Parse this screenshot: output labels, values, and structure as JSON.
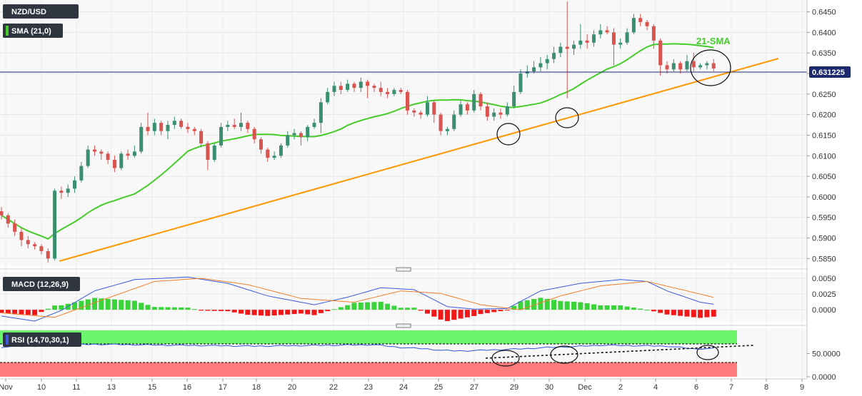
{
  "labels": {
    "symbol": "NZD/USD",
    "sma": "SMA (21,0)",
    "macd": "MACD (12,26,9)",
    "rsi": "RSI (14,70,30,1)",
    "annotation": "21-SMA",
    "last_price": "0.631225"
  },
  "colors": {
    "up": "#3a8f6e",
    "down": "#d9534f",
    "sma": "#45cc2a",
    "trend": "#ff9800",
    "macd_line": "#3b5bdb",
    "signal_line": "#f07f2a",
    "hist_pos": "#3ad43a",
    "hist_neg": "#f01818",
    "rsi_over": "#6cf56c",
    "rsi_under": "#ff7b7b",
    "label_bg": "#2f3640",
    "last_price_line": "#1e2a6e"
  },
  "chart_data": [
    {
      "type": "candlestick",
      "title": "NZD/USD",
      "x_ticks": [
        "Nov",
        "10",
        "11",
        "13",
        "15",
        "16",
        "17",
        "18",
        "20",
        "22",
        "23",
        "24",
        "25",
        "27",
        "29",
        "30",
        "Dec",
        "2",
        "4",
        "6",
        "7",
        "8",
        "9"
      ],
      "ylim": [
        0.5835,
        0.647
      ],
      "y_ticks": [
        "0.5850",
        "0.5900",
        "0.5950",
        "0.6000",
        "0.6050",
        "0.6100",
        "0.6150",
        "0.6200",
        "0.6250",
        "0.6300",
        "0.6350",
        "0.6400",
        "0.6450"
      ],
      "last_price": 0.631225,
      "sma_period": 21,
      "candles": [
        [
          0.5965,
          0.5955,
          0.5975,
          0.5945
        ],
        [
          0.5955,
          0.5935,
          0.596,
          0.5925
        ],
        [
          0.5935,
          0.5915,
          0.5945,
          0.5905
        ],
        [
          0.5915,
          0.5895,
          0.5925,
          0.588
        ],
        [
          0.5895,
          0.5885,
          0.5905,
          0.5875
        ],
        [
          0.5885,
          0.588,
          0.589,
          0.5872
        ],
        [
          0.588,
          0.5868,
          0.5885,
          0.586
        ],
        [
          0.5868,
          0.585,
          0.5875,
          0.584
        ],
        [
          0.585,
          0.6015,
          0.602,
          0.5845
        ],
        [
          0.6015,
          0.601,
          0.6025,
          0.5995
        ],
        [
          0.601,
          0.602,
          0.603,
          0.6
        ],
        [
          0.602,
          0.604,
          0.605,
          0.601
        ],
        [
          0.604,
          0.6075,
          0.6085,
          0.6035
        ],
        [
          0.6075,
          0.6115,
          0.6125,
          0.607
        ],
        [
          0.6115,
          0.611,
          0.6125,
          0.61
        ],
        [
          0.611,
          0.6105,
          0.6115,
          0.609
        ],
        [
          0.6105,
          0.609,
          0.611,
          0.608
        ],
        [
          0.609,
          0.607,
          0.61,
          0.606
        ],
        [
          0.607,
          0.6105,
          0.611,
          0.6065
        ],
        [
          0.6105,
          0.61,
          0.6115,
          0.609
        ],
        [
          0.61,
          0.611,
          0.6125,
          0.6095
        ],
        [
          0.611,
          0.617,
          0.618,
          0.6105
        ],
        [
          0.617,
          0.616,
          0.6205,
          0.615
        ],
        [
          0.616,
          0.618,
          0.619,
          0.615
        ],
        [
          0.618,
          0.616,
          0.6185,
          0.615
        ],
        [
          0.616,
          0.6175,
          0.6185,
          0.614
        ],
        [
          0.6175,
          0.6185,
          0.6195,
          0.6165
        ],
        [
          0.6185,
          0.617,
          0.619,
          0.6165
        ],
        [
          0.617,
          0.6165,
          0.618,
          0.6155
        ],
        [
          0.6165,
          0.616,
          0.617,
          0.615
        ],
        [
          0.616,
          0.613,
          0.6165,
          0.612
        ],
        [
          0.613,
          0.609,
          0.6135,
          0.6065
        ],
        [
          0.609,
          0.6125,
          0.613,
          0.6085
        ],
        [
          0.6125,
          0.617,
          0.618,
          0.612
        ],
        [
          0.617,
          0.6175,
          0.6185,
          0.616
        ],
        [
          0.6175,
          0.617,
          0.619,
          0.6165
        ],
        [
          0.617,
          0.618,
          0.6205,
          0.616
        ],
        [
          0.618,
          0.6165,
          0.6185,
          0.6155
        ],
        [
          0.6165,
          0.614,
          0.617,
          0.613
        ],
        [
          0.614,
          0.6115,
          0.6145,
          0.6105
        ],
        [
          0.6115,
          0.6095,
          0.612,
          0.6085
        ],
        [
          0.6095,
          0.61,
          0.611,
          0.609
        ],
        [
          0.61,
          0.6125,
          0.613,
          0.6095
        ],
        [
          0.6125,
          0.615,
          0.616,
          0.612
        ],
        [
          0.615,
          0.6155,
          0.6165,
          0.614
        ],
        [
          0.6155,
          0.6145,
          0.616,
          0.6125
        ],
        [
          0.6145,
          0.617,
          0.6175,
          0.6135
        ],
        [
          0.617,
          0.618,
          0.619,
          0.6165
        ],
        [
          0.618,
          0.623,
          0.624,
          0.6155
        ],
        [
          0.623,
          0.6255,
          0.6265,
          0.6225
        ],
        [
          0.6255,
          0.627,
          0.628,
          0.6245
        ],
        [
          0.627,
          0.626,
          0.628,
          0.625
        ],
        [
          0.626,
          0.6275,
          0.6285,
          0.6255
        ],
        [
          0.6275,
          0.6265,
          0.628,
          0.6255
        ],
        [
          0.6265,
          0.628,
          0.629,
          0.6255
        ],
        [
          0.628,
          0.627,
          0.6285,
          0.624
        ],
        [
          0.627,
          0.6265,
          0.6275,
          0.6255
        ],
        [
          0.6265,
          0.6255,
          0.628,
          0.6245
        ],
        [
          0.6255,
          0.625,
          0.6265,
          0.624
        ],
        [
          0.625,
          0.626,
          0.6265,
          0.6245
        ],
        [
          0.626,
          0.6255,
          0.6265,
          0.625
        ],
        [
          0.6255,
          0.621,
          0.626,
          0.62
        ],
        [
          0.621,
          0.6205,
          0.6215,
          0.6195
        ],
        [
          0.6205,
          0.62,
          0.621,
          0.619
        ],
        [
          0.62,
          0.623,
          0.6245,
          0.6195
        ],
        [
          0.623,
          0.62,
          0.6235,
          0.618
        ],
        [
          0.62,
          0.616,
          0.6205,
          0.615
        ],
        [
          0.616,
          0.6165,
          0.617,
          0.615
        ],
        [
          0.6165,
          0.62,
          0.621,
          0.616
        ],
        [
          0.62,
          0.6225,
          0.6235,
          0.6195
        ],
        [
          0.6225,
          0.621,
          0.623,
          0.62
        ],
        [
          0.621,
          0.625,
          0.626,
          0.6205
        ],
        [
          0.625,
          0.622,
          0.6255,
          0.621
        ],
        [
          0.622,
          0.6195,
          0.623,
          0.6185
        ],
        [
          0.6195,
          0.6205,
          0.6215,
          0.6185
        ],
        [
          0.6205,
          0.62,
          0.6215,
          0.619
        ],
        [
          0.62,
          0.622,
          0.623,
          0.6195
        ],
        [
          0.622,
          0.6255,
          0.627,
          0.6215
        ],
        [
          0.6255,
          0.63,
          0.631,
          0.625
        ],
        [
          0.63,
          0.6305,
          0.632,
          0.629
        ],
        [
          0.6305,
          0.6315,
          0.633,
          0.63
        ],
        [
          0.6315,
          0.6325,
          0.634,
          0.6305
        ],
        [
          0.6325,
          0.6335,
          0.6345,
          0.631
        ],
        [
          0.6335,
          0.635,
          0.6365,
          0.6325
        ],
        [
          0.635,
          0.6365,
          0.6375,
          0.634
        ],
        [
          0.6365,
          0.636,
          0.6475,
          0.624
        ],
        [
          0.636,
          0.637,
          0.638,
          0.6345
        ],
        [
          0.637,
          0.638,
          0.642,
          0.636
        ],
        [
          0.638,
          0.6375,
          0.6395,
          0.636
        ],
        [
          0.6375,
          0.6395,
          0.6405,
          0.6365
        ],
        [
          0.6395,
          0.6405,
          0.642,
          0.6385
        ],
        [
          0.6405,
          0.64,
          0.6415,
          0.6395
        ],
        [
          0.64,
          0.637,
          0.641,
          0.632
        ],
        [
          0.637,
          0.6375,
          0.6385,
          0.636
        ],
        [
          0.6375,
          0.64,
          0.641,
          0.637
        ],
        [
          0.64,
          0.6435,
          0.6445,
          0.6395
        ],
        [
          0.6435,
          0.6425,
          0.6445,
          0.6415
        ],
        [
          0.6425,
          0.6415,
          0.643,
          0.6405
        ],
        [
          0.6415,
          0.638,
          0.642,
          0.636
        ],
        [
          0.638,
          0.632,
          0.6385,
          0.6295
        ],
        [
          0.632,
          0.631,
          0.633,
          0.63
        ],
        [
          0.631,
          0.6325,
          0.6335,
          0.6305
        ],
        [
          0.6325,
          0.631,
          0.633,
          0.63
        ],
        [
          0.631,
          0.633,
          0.6345,
          0.6305
        ],
        [
          0.633,
          0.6315,
          0.635,
          0.6305
        ],
        [
          0.6315,
          0.632,
          0.6325,
          0.631
        ],
        [
          0.632,
          0.6325,
          0.633,
          0.631
        ],
        [
          0.6325,
          0.6312,
          0.6335,
          0.6305
        ]
      ]
    },
    {
      "type": "line",
      "title": "MACD (12,26,9)",
      "ylim": [
        -0.0018,
        0.0058
      ],
      "y_ticks": [
        "0.0050",
        "0.0025",
        "0.0000"
      ],
      "macd_keyframes": [
        [
          0,
          -0.001
        ],
        [
          5,
          -0.0018
        ],
        [
          9,
          -0.0001
        ],
        [
          14,
          0.003
        ],
        [
          20,
          0.0048
        ],
        [
          28,
          0.0052
        ],
        [
          34,
          0.0042
        ],
        [
          40,
          0.0022
        ],
        [
          47,
          0.0008
        ],
        [
          52,
          0.002
        ],
        [
          57,
          0.0035
        ],
        [
          62,
          0.0032
        ],
        [
          67,
          0.0005
        ],
        [
          71,
          0.0001
        ],
        [
          76,
          0.0002
        ],
        [
          81,
          0.003
        ],
        [
          87,
          0.0042
        ],
        [
          93,
          0.0048
        ],
        [
          97,
          0.0045
        ],
        [
          100,
          0.003
        ],
        [
          105,
          0.0012
        ],
        [
          110,
          0.0004
        ]
      ],
      "signal_keyframes": [
        [
          0,
          -0.0005
        ],
        [
          8,
          -0.0012
        ],
        [
          15,
          0.0015
        ],
        [
          23,
          0.0045
        ],
        [
          30,
          0.005
        ],
        [
          37,
          0.004
        ],
        [
          45,
          0.0018
        ],
        [
          53,
          0.0012
        ],
        [
          60,
          0.003
        ],
        [
          66,
          0.0026
        ],
        [
          72,
          0.0008
        ],
        [
          78,
          0.0
        ],
        [
          84,
          0.0022
        ],
        [
          90,
          0.0038
        ],
        [
          97,
          0.0045
        ],
        [
          103,
          0.003
        ],
        [
          110,
          0.0012
        ]
      ]
    },
    {
      "type": "line",
      "title": "RSI (14,70,30,1)",
      "ylim": [
        0,
        100
      ],
      "y_ticks": [
        "50.0000",
        "0.0000"
      ],
      "overbought": 70,
      "oversold": 30,
      "rsi_keyframes": [
        [
          0,
          64
        ],
        [
          4,
          66
        ],
        [
          8,
          67
        ],
        [
          10,
          69
        ],
        [
          14,
          70
        ],
        [
          20,
          69
        ],
        [
          26,
          68
        ],
        [
          32,
          67
        ],
        [
          38,
          66
        ],
        [
          44,
          67
        ],
        [
          50,
          68
        ],
        [
          56,
          69
        ],
        [
          60,
          63
        ],
        [
          64,
          60
        ],
        [
          66,
          57
        ],
        [
          68,
          56
        ],
        [
          70,
          56
        ],
        [
          74,
          58
        ],
        [
          78,
          60
        ],
        [
          82,
          63
        ],
        [
          86,
          65
        ],
        [
          90,
          68
        ],
        [
          95,
          67
        ],
        [
          100,
          66
        ],
        [
          104,
          60
        ],
        [
          107,
          61
        ],
        [
          110,
          58
        ]
      ]
    }
  ]
}
